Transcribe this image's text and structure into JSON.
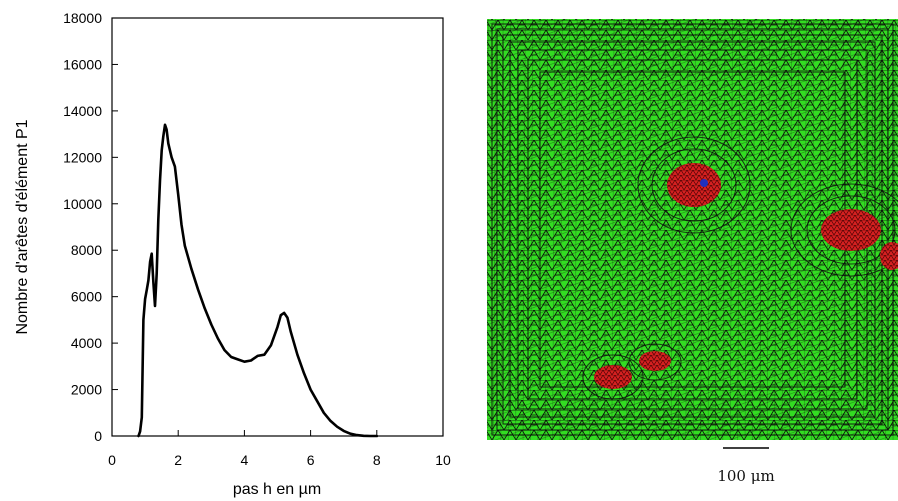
{
  "chart_data": {
    "type": "line",
    "xlabel": "pas h en µm",
    "ylabel": "Nombre d'arêtes d'élément P1",
    "xlim": [
      0,
      10
    ],
    "ylim": [
      0,
      18000
    ],
    "x_ticks": [
      "0",
      "2",
      "4",
      "6",
      "8",
      "10"
    ],
    "y_ticks": [
      "0",
      "2000",
      "4000",
      "6000",
      "8000",
      "10000",
      "12000",
      "14000",
      "16000",
      "18000"
    ],
    "grid": false,
    "series": [
      {
        "line_color": "#000000",
        "points": [
          [
            0.8,
            0
          ],
          [
            0.85,
            200
          ],
          [
            0.9,
            800
          ],
          [
            0.95,
            5000
          ],
          [
            1.0,
            5900
          ],
          [
            1.05,
            6300
          ],
          [
            1.1,
            6700
          ],
          [
            1.15,
            7500
          ],
          [
            1.2,
            7850
          ],
          [
            1.25,
            6600
          ],
          [
            1.3,
            5600
          ],
          [
            1.35,
            7000
          ],
          [
            1.4,
            9300
          ],
          [
            1.45,
            11000
          ],
          [
            1.5,
            12300
          ],
          [
            1.55,
            12900
          ],
          [
            1.6,
            13400
          ],
          [
            1.65,
            13200
          ],
          [
            1.7,
            12600
          ],
          [
            1.8,
            12000
          ],
          [
            1.9,
            11600
          ],
          [
            2.0,
            10400
          ],
          [
            2.1,
            9100
          ],
          [
            2.2,
            8200
          ],
          [
            2.4,
            7200
          ],
          [
            2.6,
            6300
          ],
          [
            2.8,
            5500
          ],
          [
            3.0,
            4800
          ],
          [
            3.2,
            4200
          ],
          [
            3.4,
            3700
          ],
          [
            3.6,
            3400
          ],
          [
            3.8,
            3300
          ],
          [
            4.0,
            3200
          ],
          [
            4.2,
            3250
          ],
          [
            4.4,
            3450
          ],
          [
            4.6,
            3500
          ],
          [
            4.8,
            3900
          ],
          [
            5.0,
            4700
          ],
          [
            5.1,
            5200
          ],
          [
            5.2,
            5300
          ],
          [
            5.3,
            5100
          ],
          [
            5.4,
            4500
          ],
          [
            5.6,
            3500
          ],
          [
            5.8,
            2700
          ],
          [
            6.0,
            2000
          ],
          [
            6.2,
            1500
          ],
          [
            6.4,
            1000
          ],
          [
            6.6,
            650
          ],
          [
            6.8,
            400
          ],
          [
            7.0,
            220
          ],
          [
            7.2,
            100
          ],
          [
            7.4,
            40
          ],
          [
            7.6,
            10
          ],
          [
            7.8,
            0
          ],
          [
            8.0,
            0
          ]
        ]
      }
    ]
  },
  "mesh_image": {
    "mesh_color": "#33dd22",
    "edge_color": "#000000",
    "inclusion_color": "#d42020",
    "marker_color": "#2030c0",
    "scale_bar_label": "100 μm"
  }
}
